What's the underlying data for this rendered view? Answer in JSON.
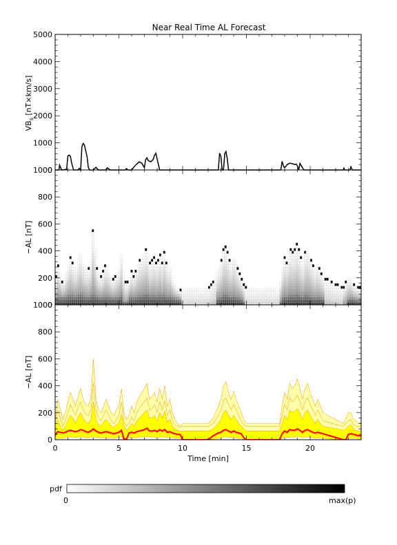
{
  "title": "Near Real Time AL Forecast",
  "colors": {
    "vbs_line": "#000000",
    "median_line": "#ff0000",
    "envelope_edge": "#f5a623",
    "envelope_outer_fill": "#ffffaa",
    "envelope_inner_fill": "#ffff00"
  },
  "colorbar": {
    "title": "pdf",
    "min_label": "0",
    "max_label": "max(p)"
  },
  "chart_data": [
    {
      "type": "line",
      "panel": "vbs",
      "ylabel_main": "VB",
      "ylabel_sub": "s",
      "ylabel_unit": " [nT×km/s]",
      "xlim": [
        0,
        24
      ],
      "ylim": [
        0,
        5000
      ],
      "yticks": [
        0,
        1000,
        2000,
        3000,
        4000,
        5000
      ],
      "series": [
        {
          "x": [
            0,
            0.3,
            0.35,
            0.5,
            0.6,
            0.9,
            1.0,
            1.1,
            1.2,
            1.3,
            1.45,
            1.6,
            1.8,
            1.9,
            2.0,
            2.1,
            2.2,
            2.3,
            2.4,
            2.5,
            2.6,
            2.7,
            2.9,
            3.0,
            3.2,
            3.4,
            3.6,
            4.0,
            4.1,
            4.3,
            5.0,
            5.5,
            5.6,
            5.7,
            6.0,
            6.2,
            6.4,
            6.6,
            6.8,
            7.0,
            7.1,
            7.2,
            7.3,
            7.5,
            7.7,
            7.8,
            7.9,
            8.0,
            8.2,
            8.3,
            9.0,
            10,
            12,
            12.8,
            12.9,
            13.0,
            13.1,
            13.2,
            13.3,
            13.4,
            13.5,
            13.6,
            13.7,
            14,
            17,
            17.7,
            17.8,
            17.9,
            18.0,
            18.2,
            18.4,
            18.6,
            18.8,
            18.9,
            19.0,
            19.1,
            19.2,
            19.5,
            19.8,
            20.0,
            22,
            22.6,
            22.65,
            22.7,
            23,
            23.1,
            23.2,
            23.3,
            24
          ],
          "y": [
            0,
            0,
            180,
            0,
            0,
            30,
            520,
            550,
            500,
            250,
            0,
            0,
            0,
            60,
            0,
            850,
            980,
            920,
            700,
            500,
            100,
            0,
            0,
            0,
            100,
            0,
            0,
            0,
            80,
            0,
            0,
            0,
            50,
            0,
            0,
            120,
            220,
            300,
            250,
            80,
            380,
            450,
            350,
            300,
            400,
            550,
            620,
            400,
            0,
            0,
            0,
            0,
            0,
            0,
            620,
            500,
            0,
            0,
            600,
            680,
            400,
            0,
            0,
            0,
            0,
            0,
            320,
            150,
            80,
            200,
            250,
            230,
            200,
            220,
            150,
            0,
            240,
            0,
            0,
            0,
            0,
            0,
            90,
            0,
            0,
            0,
            120,
            0,
            0
          ]
        }
      ]
    },
    {
      "type": "heatmap",
      "panel": "pdf",
      "ylabel": "−AL [nT]",
      "xlim": [
        0,
        24
      ],
      "ylim": [
        0,
        1000
      ],
      "yticks": [
        0,
        200,
        400,
        600,
        800,
        1000
      ],
      "bin_width_min": 0.16,
      "bin_height_nT": 20,
      "intensity_scale": "0 to max(p)"
    },
    {
      "type": "area",
      "panel": "forecast",
      "ylabel": "−AL [nT]",
      "xlabel": "Time [min]",
      "xlim": [
        0,
        24
      ],
      "ylim": [
        0,
        1000
      ],
      "yticks": [
        0,
        200,
        400,
        600,
        800,
        1000
      ],
      "xticks": [
        0,
        5,
        10,
        15,
        20
      ],
      "x": [
        0,
        0.2,
        0.4,
        0.6,
        0.8,
        1.0,
        1.2,
        1.4,
        1.6,
        1.8,
        2.0,
        2.2,
        2.4,
        2.6,
        2.8,
        3.0,
        3.2,
        3.4,
        3.6,
        3.8,
        4.0,
        4.2,
        4.4,
        4.6,
        4.8,
        5.0,
        5.2,
        5.4,
        5.6,
        5.8,
        6.0,
        6.2,
        6.4,
        6.6,
        6.8,
        7.0,
        7.2,
        7.4,
        7.6,
        7.8,
        8.0,
        8.2,
        8.4,
        8.6,
        8.8,
        9.0,
        9.2,
        9.4,
        9.6,
        9.8,
        10.0,
        12.0,
        12.4,
        12.8,
        13.0,
        13.2,
        13.4,
        13.6,
        13.8,
        14.0,
        14.2,
        14.4,
        14.6,
        14.8,
        15.0,
        17.6,
        17.8,
        18.0,
        18.2,
        18.4,
        18.6,
        18.8,
        19.0,
        19.2,
        19.4,
        19.6,
        19.8,
        20.0,
        20.2,
        20.4,
        20.6,
        20.8,
        21.0,
        22.6,
        22.8,
        23.0,
        23.2,
        23.4,
        23.6,
        23.8,
        24.0
      ],
      "series": [
        {
          "values": [
            140,
            300,
            230,
            150,
            200,
            280,
            350,
            300,
            250,
            320,
            380,
            300,
            260,
            250,
            310,
            600,
            300,
            220,
            200,
            250,
            300,
            250,
            200,
            180,
            220,
            250,
            380,
            200,
            150,
            180,
            250,
            200,
            280,
            320,
            350,
            380,
            420,
            300,
            320,
            350,
            280,
            380,
            300,
            400,
            250,
            300,
            200,
            150,
            120,
            100,
            120,
            120,
            160,
            250,
            300,
            400,
            430,
            350,
            300,
            360,
            300,
            250,
            200,
            150,
            120,
            120,
            250,
            350,
            300,
            420,
            380,
            400,
            450,
            380,
            300,
            380,
            420,
            350,
            300,
            250,
            300,
            250,
            200,
            120,
            160,
            200,
            200,
            150,
            140,
            120,
            130
          ]
        },
        {
          "values": [
            100,
            220,
            160,
            100,
            140,
            200,
            260,
            220,
            180,
            240,
            280,
            220,
            190,
            180,
            220,
            420,
            220,
            160,
            140,
            180,
            220,
            180,
            140,
            120,
            150,
            180,
            280,
            140,
            100,
            120,
            170,
            140,
            200,
            230,
            260,
            280,
            310,
            220,
            230,
            260,
            200,
            280,
            220,
            290,
            180,
            220,
            140,
            110,
            100,
            90,
            100,
            100,
            120,
            180,
            220,
            290,
            310,
            260,
            220,
            260,
            220,
            180,
            140,
            110,
            100,
            100,
            180,
            260,
            220,
            310,
            280,
            300,
            330,
            280,
            220,
            280,
            310,
            260,
            220,
            180,
            220,
            180,
            140,
            100,
            120,
            140,
            150,
            110,
            100,
            100,
            100
          ]
        },
        {
          "values": [
            60,
            150,
            100,
            70,
            100,
            140,
            180,
            160,
            120,
            170,
            200,
            160,
            130,
            120,
            150,
            280,
            150,
            110,
            100,
            130,
            150,
            130,
            100,
            90,
            110,
            120,
            190,
            100,
            70,
            90,
            120,
            100,
            140,
            160,
            180,
            200,
            220,
            160,
            160,
            180,
            140,
            200,
            160,
            210,
            130,
            150,
            100,
            80,
            70,
            60,
            65,
            65,
            80,
            120,
            150,
            200,
            220,
            180,
            150,
            180,
            150,
            120,
            100,
            80,
            65,
            65,
            120,
            180,
            150,
            220,
            200,
            210,
            230,
            200,
            150,
            200,
            220,
            180,
            150,
            120,
            150,
            120,
            100,
            70,
            80,
            100,
            110,
            80,
            70,
            65,
            65
          ]
        },
        {
          "values": [
            20,
            45,
            40,
            35,
            45,
            55,
            60,
            55,
            50,
            55,
            60,
            55,
            50,
            45,
            55,
            70,
            55,
            45,
            40,
            45,
            50,
            45,
            40,
            35,
            40,
            45,
            60,
            5,
            5,
            40,
            45,
            40,
            50,
            55,
            60,
            65,
            70,
            55,
            55,
            60,
            50,
            65,
            55,
            65,
            45,
            55,
            40,
            35,
            30,
            30,
            0,
            0,
            20,
            40,
            45,
            60,
            65,
            55,
            45,
            55,
            45,
            40,
            35,
            10,
            0,
            0,
            35,
            55,
            45,
            65,
            60,
            60,
            70,
            60,
            45,
            60,
            65,
            55,
            45,
            40,
            45,
            40,
            35,
            0,
            0,
            30,
            35,
            30,
            25,
            20,
            20
          ]
        },
        {
          "values": [
            5,
            10,
            10,
            10,
            15,
            20,
            20,
            20,
            15,
            20,
            20,
            20,
            15,
            15,
            20,
            20,
            20,
            15,
            15,
            15,
            15,
            15,
            15,
            10,
            15,
            15,
            20,
            0,
            0,
            15,
            15,
            15,
            15,
            20,
            20,
            20,
            25,
            20,
            20,
            20,
            15,
            20,
            20,
            20,
            15,
            20,
            15,
            10,
            10,
            10,
            0,
            0,
            5,
            10,
            15,
            20,
            20,
            20,
            15,
            20,
            15,
            10,
            10,
            0,
            0,
            0,
            10,
            20,
            15,
            20,
            20,
            20,
            25,
            20,
            15,
            20,
            20,
            20,
            15,
            10,
            15,
            10,
            10,
            0,
            0,
            10,
            10,
            10,
            10,
            5,
            5
          ]
        }
      ],
      "median": [
        35,
        60,
        55,
        50,
        55,
        65,
        70,
        65,
        60,
        65,
        75,
        70,
        60,
        55,
        65,
        80,
        65,
        55,
        50,
        55,
        60,
        55,
        50,
        45,
        50,
        55,
        70,
        5,
        5,
        50,
        55,
        50,
        60,
        65,
        70,
        75,
        85,
        65,
        65,
        70,
        60,
        75,
        65,
        75,
        55,
        60,
        50,
        45,
        40,
        40,
        0,
        0,
        30,
        50,
        55,
        70,
        75,
        65,
        55,
        65,
        55,
        50,
        45,
        15,
        0,
        0,
        45,
        65,
        55,
        75,
        70,
        70,
        80,
        70,
        55,
        70,
        75,
        65,
        55,
        50,
        55,
        50,
        45,
        0,
        0,
        40,
        45,
        40,
        35,
        30,
        30
      ]
    }
  ]
}
